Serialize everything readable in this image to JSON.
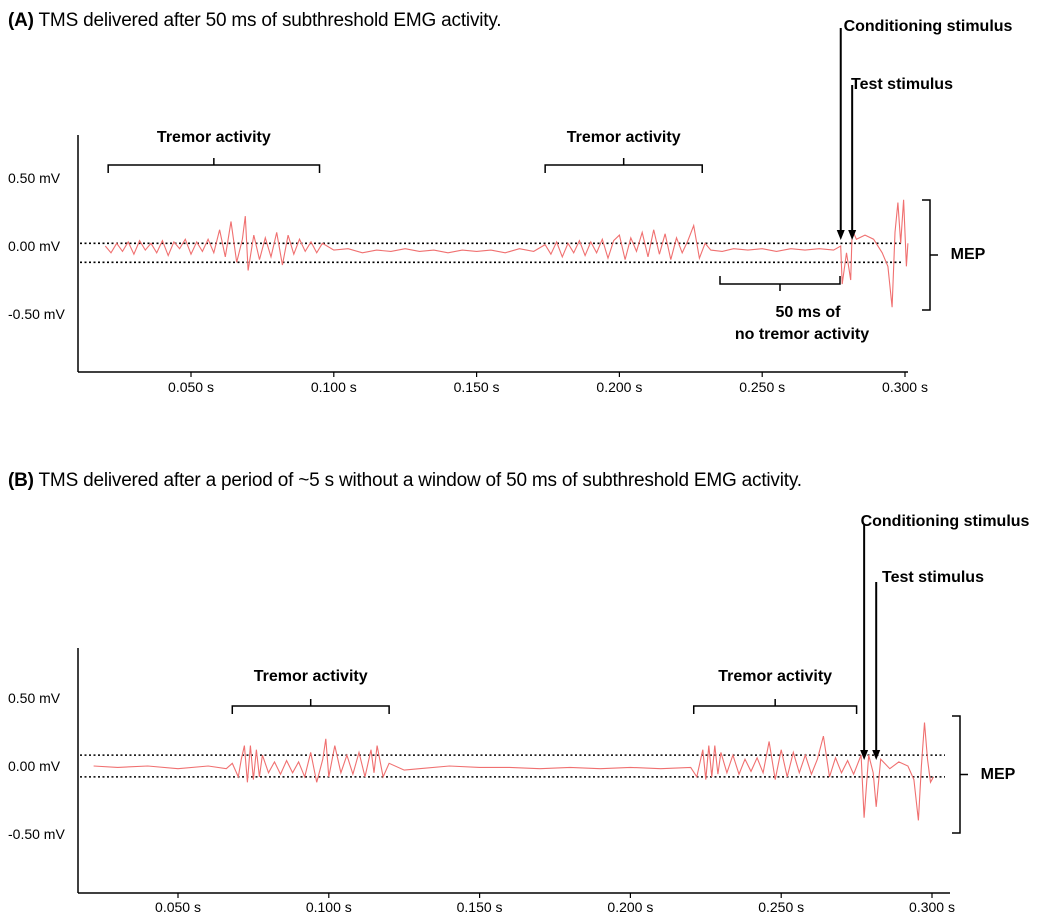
{
  "panels": [
    {
      "id": "A",
      "letter": "(A)",
      "title": "TMS delivered after 50 ms of subthreshold EMG activity.",
      "annotations": {
        "tremor_1": "Tremor activity",
        "tremor_2": "Tremor activity",
        "conditioning": "Conditioning stimulus",
        "test": "Test stimulus",
        "mep": "MEP",
        "no_tremor_line1": "50 ms of",
        "no_tremor_line2": "no tremor activity"
      }
    },
    {
      "id": "B",
      "letter": "(B)",
      "title": "TMS delivered after a period of ~5 s without  a window  of 50 ms of subthreshold  EMG activity.",
      "annotations": {
        "tremor_1": "Tremor activity",
        "tremor_2": "Tremor activity",
        "conditioning": "Conditioning stimulus",
        "test": "Test stimulus",
        "mep": "MEP"
      }
    }
  ],
  "chart_data": [
    {
      "type": "line",
      "panel": "A",
      "title": "TMS delivered after 50 ms of subthreshold EMG activity.",
      "x_unit": "s",
      "y_unit": "mV",
      "xlim": [
        0.02,
        0.305
      ],
      "ylim": [
        -0.9,
        0.85
      ],
      "x_ticks": [
        0.05,
        0.1,
        0.15,
        0.2,
        0.25,
        0.3
      ],
      "x_tick_labels": [
        "0.050 s",
        "0.100 s",
        "0.150 s",
        "0.200 s",
        "0.250 s",
        "0.300 s"
      ],
      "y_ticks": [
        0.5,
        0.0,
        -0.5
      ],
      "y_tick_labels": [
        "0.50 mV",
        "0.00 mV",
        "-0.50 mV"
      ],
      "threshold_lines_mV": [
        0.02,
        -0.12
      ],
      "tremor_windows_s": [
        [
          0.021,
          0.095
        ],
        [
          0.174,
          0.229
        ]
      ],
      "no_tremor_window_s": [
        0.236,
        0.278
      ],
      "conditioning_stimulus_s": 0.2775,
      "test_stimulus_s": 0.2815,
      "mep_range_mV": [
        -0.45,
        0.35
      ],
      "series": [
        {
          "color": "#f07070",
          "points": [
            [
              0.02,
              0.0
            ],
            [
              0.022,
              -0.05
            ],
            [
              0.024,
              0.02
            ],
            [
              0.026,
              -0.04
            ],
            [
              0.028,
              0.03
            ],
            [
              0.03,
              -0.06
            ],
            [
              0.032,
              0.04
            ],
            [
              0.034,
              -0.03
            ],
            [
              0.036,
              0.02
            ],
            [
              0.038,
              -0.05
            ],
            [
              0.04,
              0.04
            ],
            [
              0.042,
              -0.07
            ],
            [
              0.044,
              0.03
            ],
            [
              0.046,
              -0.02
            ],
            [
              0.048,
              0.05
            ],
            [
              0.05,
              -0.06
            ],
            [
              0.052,
              0.03
            ],
            [
              0.054,
              -0.04
            ],
            [
              0.056,
              0.05
            ],
            [
              0.058,
              -0.05
            ],
            [
              0.06,
              0.12
            ],
            [
              0.062,
              -0.08
            ],
            [
              0.064,
              0.18
            ],
            [
              0.066,
              -0.12
            ],
            [
              0.068,
              0.05
            ],
            [
              0.069,
              0.22
            ],
            [
              0.07,
              -0.18
            ],
            [
              0.072,
              0.08
            ],
            [
              0.074,
              -0.1
            ],
            [
              0.076,
              0.06
            ],
            [
              0.078,
              -0.08
            ],
            [
              0.08,
              0.1
            ],
            [
              0.082,
              -0.14
            ],
            [
              0.084,
              0.08
            ],
            [
              0.086,
              -0.06
            ],
            [
              0.088,
              0.05
            ],
            [
              0.09,
              -0.04
            ],
            [
              0.092,
              0.03
            ],
            [
              0.094,
              -0.05
            ],
            [
              0.096,
              0.02
            ],
            [
              0.1,
              -0.03
            ],
            [
              0.105,
              -0.02
            ],
            [
              0.11,
              -0.05
            ],
            [
              0.115,
              -0.03
            ],
            [
              0.12,
              -0.04
            ],
            [
              0.125,
              -0.02
            ],
            [
              0.13,
              -0.04
            ],
            [
              0.135,
              -0.03
            ],
            [
              0.14,
              -0.05
            ],
            [
              0.145,
              -0.03
            ],
            [
              0.15,
              -0.04
            ],
            [
              0.155,
              -0.03
            ],
            [
              0.16,
              -0.05
            ],
            [
              0.165,
              -0.02
            ],
            [
              0.17,
              -0.04
            ],
            [
              0.174,
              0.01
            ],
            [
              0.176,
              -0.06
            ],
            [
              0.178,
              0.03
            ],
            [
              0.18,
              -0.08
            ],
            [
              0.182,
              0.02
            ],
            [
              0.184,
              -0.05
            ],
            [
              0.186,
              0.04
            ],
            [
              0.188,
              -0.07
            ],
            [
              0.19,
              0.03
            ],
            [
              0.192,
              -0.05
            ],
            [
              0.194,
              0.05
            ],
            [
              0.196,
              -0.09
            ],
            [
              0.198,
              0.04
            ],
            [
              0.2,
              0.08
            ],
            [
              0.202,
              -0.1
            ],
            [
              0.204,
              0.06
            ],
            [
              0.206,
              -0.04
            ],
            [
              0.208,
              0.1
            ],
            [
              0.21,
              -0.08
            ],
            [
              0.212,
              0.12
            ],
            [
              0.214,
              -0.06
            ],
            [
              0.216,
              0.09
            ],
            [
              0.218,
              -0.1
            ],
            [
              0.22,
              0.06
            ],
            [
              0.222,
              -0.05
            ],
            [
              0.224,
              0.04
            ],
            [
              0.226,
              0.15
            ],
            [
              0.228,
              -0.09
            ],
            [
              0.23,
              0.02
            ],
            [
              0.232,
              -0.03
            ],
            [
              0.236,
              -0.04
            ],
            [
              0.24,
              -0.02
            ],
            [
              0.245,
              -0.03
            ],
            [
              0.25,
              -0.02
            ],
            [
              0.255,
              -0.04
            ],
            [
              0.26,
              -0.02
            ],
            [
              0.265,
              -0.03
            ],
            [
              0.27,
              -0.02
            ],
            [
              0.275,
              -0.03
            ],
            [
              0.2775,
              0.0
            ],
            [
              0.278,
              -0.28
            ],
            [
              0.2795,
              -0.05
            ],
            [
              0.281,
              -0.25
            ],
            [
              0.2815,
              0.12
            ],
            [
              0.283,
              0.05
            ],
            [
              0.286,
              0.08
            ],
            [
              0.289,
              0.05
            ],
            [
              0.292,
              -0.05
            ],
            [
              0.294,
              -0.15
            ],
            [
              0.2955,
              -0.45
            ],
            [
              0.2965,
              0.1
            ],
            [
              0.2975,
              0.32
            ],
            [
              0.2985,
              0.02
            ],
            [
              0.2995,
              0.34
            ],
            [
              0.3005,
              -0.15
            ],
            [
              0.301,
              0.02
            ]
          ]
        }
      ]
    },
    {
      "type": "line",
      "panel": "B",
      "title": "TMS delivered after a period of ~5 s without  a window  of 50 ms of subthreshold  EMG activity.",
      "x_unit": "s",
      "y_unit": "mV",
      "xlim": [
        0.022,
        0.305
      ],
      "ylim": [
        -0.9,
        0.85
      ],
      "x_ticks": [
        0.05,
        0.1,
        0.15,
        0.2,
        0.25,
        0.3
      ],
      "x_tick_labels": [
        "0.050 s",
        "0.100 s",
        "0.150 s",
        "0.200 s",
        "0.250 s",
        "0.300 s"
      ],
      "y_ticks": [
        0.5,
        0.0,
        -0.5
      ],
      "y_tick_labels": [
        "0.50 mV",
        "0.00 mV",
        "-0.50 mV"
      ],
      "threshold_lines_mV": [
        0.08,
        -0.08
      ],
      "tremor_windows_s": [
        [
          0.068,
          0.12
        ],
        [
          0.221,
          0.275
        ]
      ],
      "conditioning_stimulus_s": 0.2775,
      "test_stimulus_s": 0.2815,
      "mep_range_mV": [
        -0.45,
        0.35
      ],
      "series": [
        {
          "color": "#f07070",
          "points": [
            [
              0.022,
              0.0
            ],
            [
              0.03,
              -0.01
            ],
            [
              0.04,
              0.0
            ],
            [
              0.05,
              -0.02
            ],
            [
              0.06,
              0.0
            ],
            [
              0.066,
              -0.02
            ],
            [
              0.068,
              0.02
            ],
            [
              0.07,
              -0.08
            ],
            [
              0.071,
              0.05
            ],
            [
              0.072,
              0.15
            ],
            [
              0.073,
              -0.12
            ],
            [
              0.074,
              0.15
            ],
            [
              0.075,
              -0.1
            ],
            [
              0.076,
              0.12
            ],
            [
              0.077,
              -0.08
            ],
            [
              0.078,
              0.08
            ],
            [
              0.08,
              -0.05
            ],
            [
              0.082,
              0.03
            ],
            [
              0.084,
              -0.06
            ],
            [
              0.086,
              0.04
            ],
            [
              0.088,
              -0.05
            ],
            [
              0.09,
              0.03
            ],
            [
              0.092,
              -0.08
            ],
            [
              0.094,
              0.1
            ],
            [
              0.096,
              -0.12
            ],
            [
              0.098,
              0.05
            ],
            [
              0.099,
              0.2
            ],
            [
              0.1,
              -0.08
            ],
            [
              0.102,
              0.15
            ],
            [
              0.104,
              -0.05
            ],
            [
              0.106,
              0.08
            ],
            [
              0.108,
              -0.06
            ],
            [
              0.11,
              0.1
            ],
            [
              0.112,
              -0.08
            ],
            [
              0.114,
              0.12
            ],
            [
              0.115,
              -0.05
            ],
            [
              0.116,
              0.15
            ],
            [
              0.118,
              -0.08
            ],
            [
              0.12,
              0.02
            ],
            [
              0.125,
              -0.03
            ],
            [
              0.13,
              -0.02
            ],
            [
              0.14,
              0.0
            ],
            [
              0.15,
              -0.01
            ],
            [
              0.16,
              -0.01
            ],
            [
              0.17,
              -0.02
            ],
            [
              0.18,
              -0.01
            ],
            [
              0.19,
              -0.02
            ],
            [
              0.2,
              -0.01
            ],
            [
              0.21,
              -0.02
            ],
            [
              0.22,
              -0.01
            ],
            [
              0.222,
              -0.08
            ],
            [
              0.224,
              0.12
            ],
            [
              0.225,
              -0.1
            ],
            [
              0.226,
              0.15
            ],
            [
              0.227,
              -0.08
            ],
            [
              0.228,
              0.15
            ],
            [
              0.229,
              -0.06
            ],
            [
              0.23,
              0.1
            ],
            [
              0.232,
              -0.05
            ],
            [
              0.234,
              0.08
            ],
            [
              0.236,
              -0.06
            ],
            [
              0.238,
              0.05
            ],
            [
              0.24,
              -0.04
            ],
            [
              0.242,
              0.06
            ],
            [
              0.244,
              -0.05
            ],
            [
              0.246,
              0.18
            ],
            [
              0.248,
              -0.1
            ],
            [
              0.25,
              0.12
            ],
            [
              0.252,
              -0.08
            ],
            [
              0.254,
              0.1
            ],
            [
              0.256,
              -0.05
            ],
            [
              0.258,
              0.08
            ],
            [
              0.26,
              -0.06
            ],
            [
              0.262,
              0.05
            ],
            [
              0.264,
              0.22
            ],
            [
              0.266,
              -0.08
            ],
            [
              0.268,
              0.06
            ],
            [
              0.27,
              -0.05
            ],
            [
              0.272,
              0.04
            ],
            [
              0.274,
              -0.06
            ],
            [
              0.2765,
              0.08
            ],
            [
              0.2775,
              -0.38
            ],
            [
              0.279,
              0.08
            ],
            [
              0.2805,
              -0.05
            ],
            [
              0.2815,
              -0.3
            ],
            [
              0.283,
              0.05
            ],
            [
              0.286,
              -0.02
            ],
            [
              0.289,
              0.03
            ],
            [
              0.292,
              0.0
            ],
            [
              0.294,
              -0.1
            ],
            [
              0.2955,
              -0.4
            ],
            [
              0.2965,
              0.0
            ],
            [
              0.2975,
              0.32
            ],
            [
              0.2985,
              0.05
            ],
            [
              0.2995,
              -0.12
            ],
            [
              0.3005,
              -0.08
            ]
          ]
        }
      ]
    }
  ]
}
